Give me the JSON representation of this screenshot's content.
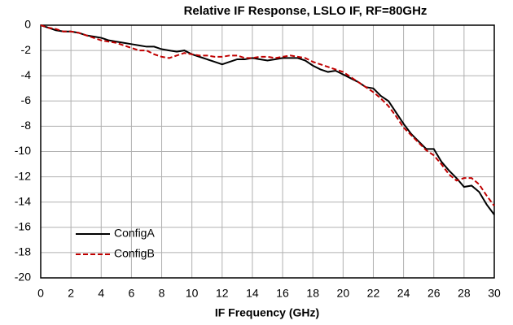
{
  "chart_data": {
    "type": "line",
    "title": "Relative IF Response, LSLO IF, RF=80GHz",
    "xlabel": "IF Frequency (GHz)",
    "x": [
      0,
      0.5,
      1,
      1.5,
      2,
      2.5,
      3,
      3.5,
      4,
      4.5,
      5,
      5.5,
      6,
      6.5,
      7,
      7.5,
      8,
      8.5,
      9,
      9.5,
      10,
      10.5,
      11,
      11.5,
      12,
      12.5,
      13,
      13.5,
      14,
      14.5,
      15,
      15.5,
      16,
      16.5,
      17,
      17.5,
      18,
      18.5,
      19,
      19.5,
      20,
      20.5,
      21,
      21.5,
      22,
      22.5,
      23,
      23.5,
      24,
      24.5,
      25,
      25.5,
      26,
      26.5,
      27,
      27.5,
      28,
      28.5,
      29,
      29.5,
      30
    ],
    "series": [
      {
        "name": "ConfigA",
        "color": "#000000",
        "style": "solid",
        "values": [
          0,
          -0.2,
          -0.4,
          -0.5,
          -0.5,
          -0.6,
          -0.8,
          -0.9,
          -1.0,
          -1.2,
          -1.3,
          -1.4,
          -1.5,
          -1.6,
          -1.7,
          -1.7,
          -1.9,
          -2.0,
          -2.1,
          -2.0,
          -2.3,
          -2.5,
          -2.7,
          -2.9,
          -3.1,
          -2.9,
          -2.7,
          -2.7,
          -2.6,
          -2.7,
          -2.8,
          -2.7,
          -2.6,
          -2.6,
          -2.6,
          -2.8,
          -3.2,
          -3.5,
          -3.7,
          -3.6,
          -3.9,
          -4.2,
          -4.5,
          -4.9,
          -5.0,
          -5.6,
          -6.0,
          -6.9,
          -7.8,
          -8.6,
          -9.2,
          -9.8,
          -9.8,
          -10.8,
          -11.5,
          -12.1,
          -12.8,
          -12.7,
          -13.2,
          -14.2,
          -15.0
        ]
      },
      {
        "name": "ConfigB",
        "color": "#c00000",
        "style": "dashed",
        "values": [
          0,
          -0.2,
          -0.3,
          -0.5,
          -0.5,
          -0.6,
          -0.8,
          -1.0,
          -1.2,
          -1.3,
          -1.4,
          -1.6,
          -1.8,
          -2.0,
          -2.0,
          -2.3,
          -2.5,
          -2.6,
          -2.4,
          -2.2,
          -2.3,
          -2.4,
          -2.4,
          -2.5,
          -2.5,
          -2.4,
          -2.4,
          -2.6,
          -2.6,
          -2.5,
          -2.5,
          -2.6,
          -2.5,
          -2.4,
          -2.5,
          -2.6,
          -2.9,
          -3.1,
          -3.3,
          -3.5,
          -3.7,
          -4.1,
          -4.5,
          -4.9,
          -5.3,
          -5.8,
          -6.4,
          -7.2,
          -8.1,
          -8.7,
          -9.3,
          -9.9,
          -10.3,
          -11.0,
          -11.8,
          -12.3,
          -12.1,
          -12.1,
          -12.6,
          -13.5,
          -14.3
        ]
      }
    ],
    "xlim": [
      0,
      30
    ],
    "xticks": [
      0,
      2,
      4,
      6,
      8,
      10,
      12,
      14,
      16,
      18,
      20,
      22,
      24,
      26,
      28,
      30
    ],
    "ylim": [
      -20,
      0
    ],
    "yticks": [
      0,
      -2,
      -4,
      -6,
      -8,
      -10,
      -12,
      -14,
      -16,
      -18,
      -20
    ],
    "grid": true,
    "legend": "lower left"
  }
}
